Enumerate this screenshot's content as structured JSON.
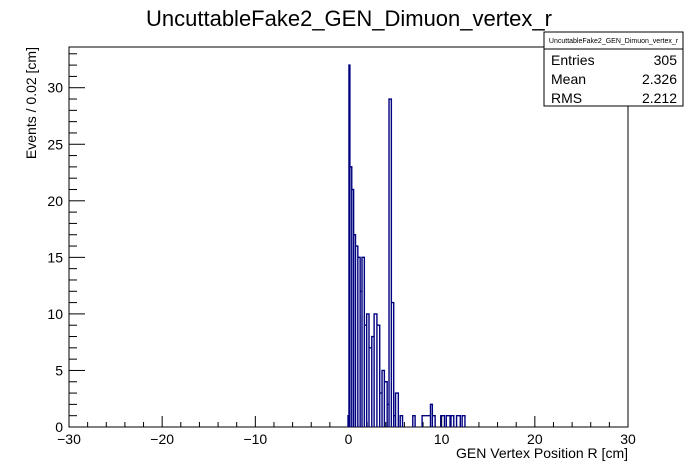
{
  "chart_data": {
    "type": "histogram",
    "title": "UncuttableFake2_GEN_Dimuon_vertex_r",
    "xlabel": "GEN Vertex Position R [cm]",
    "ylabel": "Events / 0.02 [cm]",
    "xlim": [
      -30,
      30
    ],
    "ylim": [
      0,
      33.6
    ],
    "x_ticks": [
      -30,
      -20,
      -10,
      0,
      10,
      20,
      30
    ],
    "y_ticks": [
      0,
      5,
      10,
      15,
      20,
      25,
      30
    ],
    "series_color": "#000080",
    "grid": false,
    "bins": [
      {
        "x": [
          -0.05,
          0.05
        ],
        "y": 1
      },
      {
        "x": [
          0.05,
          0.15
        ],
        "y": 32
      },
      {
        "x": [
          0.15,
          0.35
        ],
        "y": 23
      },
      {
        "x": [
          0.35,
          0.55
        ],
        "y": 21
      },
      {
        "x": [
          0.55,
          0.75
        ],
        "y": 17
      },
      {
        "x": [
          0.75,
          1.0
        ],
        "y": 16
      },
      {
        "x": [
          1.0,
          1.25
        ],
        "y": 15
      },
      {
        "x": [
          1.25,
          1.45
        ],
        "y": 12
      },
      {
        "x": [
          1.45,
          1.7
        ],
        "y": 15
      },
      {
        "x": [
          1.7,
          1.95
        ],
        "y": 9
      },
      {
        "x": [
          1.95,
          2.2
        ],
        "y": 10
      },
      {
        "x": [
          2.2,
          2.5
        ],
        "y": 7
      },
      {
        "x": [
          2.5,
          2.75
        ],
        "y": 8
      },
      {
        "x": [
          2.75,
          3.05
        ],
        "y": 10
      },
      {
        "x": [
          3.05,
          3.35
        ],
        "y": 9
      },
      {
        "x": [
          3.35,
          3.6
        ],
        "y": 3
      },
      {
        "x": [
          3.6,
          3.85
        ],
        "y": 5
      },
      {
        "x": [
          3.85,
          4.15
        ],
        "y": 4
      },
      {
        "x": [
          4.15,
          4.35
        ],
        "y": 2
      },
      {
        "x": [
          4.35,
          4.6
        ],
        "y": 29
      },
      {
        "x": [
          4.6,
          4.85
        ],
        "y": 11
      },
      {
        "x": [
          4.85,
          5.05
        ],
        "y": 1
      },
      {
        "x": [
          5.05,
          5.35
        ],
        "y": 3
      },
      {
        "x": [
          5.35,
          5.55
        ],
        "y": 0
      },
      {
        "x": [
          5.55,
          5.8
        ],
        "y": 1
      },
      {
        "x": [
          6.9,
          7.15
        ],
        "y": 1
      },
      {
        "x": [
          7.9,
          8.8
        ],
        "y": 1
      },
      {
        "x": [
          8.8,
          9.0
        ],
        "y": 2
      },
      {
        "x": [
          9.0,
          9.3
        ],
        "y": 1
      },
      {
        "x": [
          9.9,
          10.3
        ],
        "y": 1
      },
      {
        "x": [
          10.5,
          10.9
        ],
        "y": 1
      },
      {
        "x": [
          11.0,
          11.3
        ],
        "y": 1
      },
      {
        "x": [
          11.6,
          12.0
        ],
        "y": 1
      },
      {
        "x": [
          12.2,
          12.5
        ],
        "y": 1
      }
    ],
    "stats_box": {
      "title": "UncuttableFake2_GEN_Dimuon_vertex_r",
      "rows": [
        {
          "label": "Entries",
          "value": "305"
        },
        {
          "label": "Mean",
          "value": "2.326"
        },
        {
          "label": "RMS",
          "value": "2.212"
        }
      ]
    }
  }
}
